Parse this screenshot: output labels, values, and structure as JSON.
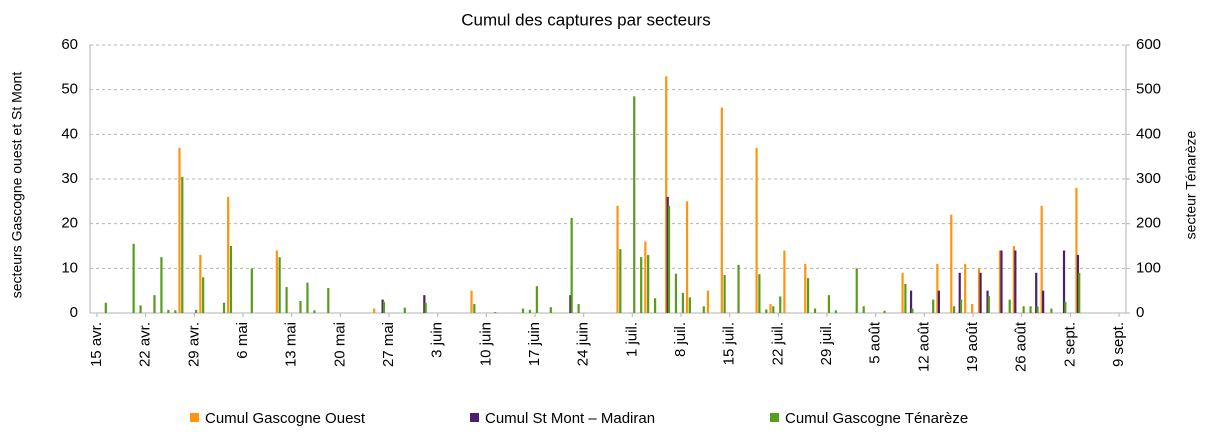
{
  "chart_data": {
    "type": "bar",
    "title": "Cumul des captures par secteurs",
    "y_label": "secteurs Gascogne ouest et St Mont",
    "y2_label": "secteur Ténarèze",
    "x": [
      "04-16",
      "04-20",
      "04-21",
      "04-23",
      "04-24",
      "04-25",
      "04-26",
      "04-27",
      "04-29",
      "04-30",
      "05-03",
      "05-04",
      "05-07",
      "05-11",
      "05-12",
      "05-14",
      "05-15",
      "05-16",
      "05-18",
      "05-25",
      "05-26",
      "05-29",
      "06-01",
      "06-08",
      "06-11",
      "06-15",
      "06-16",
      "06-17",
      "06-19",
      "06-22",
      "06-23",
      "06-29",
      "07-01",
      "07-02",
      "07-03",
      "07-04",
      "07-06",
      "07-07",
      "07-08",
      "07-09",
      "07-11",
      "07-12",
      "07-14",
      "07-16",
      "07-19",
      "07-20",
      "07-21",
      "07-22",
      "07-23",
      "07-26",
      "07-27",
      "07-29",
      "07-30",
      "08-02",
      "08-03",
      "08-06",
      "08-09",
      "08-10",
      "08-13",
      "08-14",
      "08-16",
      "08-17",
      "08-18",
      "08-19",
      "08-20",
      "08-21",
      "08-23",
      "08-24",
      "08-25",
      "08-26",
      "08-27",
      "08-28",
      "08-29",
      "08-30",
      "09-01",
      "09-03"
    ],
    "series": [
      {
        "name": "Cumul Gascogne Ouest",
        "color": "#ff950e",
        "values": [
          null,
          null,
          null,
          null,
          null,
          null,
          null,
          37,
          null,
          13,
          null,
          26,
          null,
          14,
          null,
          null,
          null,
          null,
          null,
          1,
          null,
          null,
          null,
          5,
          null,
          null,
          null,
          null,
          null,
          null,
          null,
          24,
          null,
          null,
          16,
          null,
          53,
          null,
          null,
          25,
          null,
          5,
          46,
          null,
          37,
          null,
          2,
          null,
          14,
          11,
          null,
          null,
          null,
          null,
          null,
          null,
          9,
          null,
          null,
          11,
          22,
          null,
          11,
          2,
          10,
          null,
          14,
          null,
          15,
          null,
          null,
          null,
          24,
          null,
          null,
          28
        ]
      },
      {
        "name": "Cumul St Mont – Madiran",
        "color": "#4b1f6f",
        "values": [
          null,
          null,
          null,
          null,
          null,
          null,
          null,
          null,
          null,
          null,
          null,
          null,
          null,
          null,
          null,
          null,
          null,
          null,
          null,
          null,
          3,
          null,
          4,
          null,
          null,
          null,
          null,
          null,
          null,
          4,
          null,
          null,
          null,
          null,
          null,
          null,
          26,
          null,
          null,
          null,
          null,
          null,
          null,
          null,
          null,
          null,
          null,
          null,
          null,
          null,
          null,
          null,
          null,
          null,
          null,
          null,
          null,
          5,
          null,
          5,
          null,
          9,
          null,
          null,
          9,
          5,
          14,
          null,
          14,
          null,
          null,
          9,
          5,
          null,
          14,
          13
        ]
      },
      {
        "name": "Cumul Gascogne Ténarèze",
        "color": "#579d1c",
        "axis": "y2",
        "values": [
          23,
          155,
          17,
          40,
          125,
          7,
          6,
          305,
          7,
          80,
          23,
          150,
          100,
          125,
          58,
          27,
          68,
          6,
          56,
          null,
          25,
          12,
          23,
          20,
          2,
          10,
          7,
          60,
          13,
          213,
          20,
          143,
          485,
          125,
          130,
          33,
          240,
          88,
          45,
          35,
          15,
          null,
          85,
          108,
          87,
          8,
          15,
          37,
          null,
          78,
          10,
          40,
          6,
          100,
          15,
          5,
          65,
          10,
          30,
          null,
          15,
          30,
          null,
          null,
          null,
          38,
          null,
          30,
          null,
          15,
          15,
          15,
          null,
          10,
          25,
          90
        ]
      }
    ],
    "xlim": [
      "04-14",
      "09-10"
    ],
    "xticks": [
      {
        "value": "04-15",
        "label": "15 avr."
      },
      {
        "value": "04-22",
        "label": "22 avr."
      },
      {
        "value": "04-29",
        "label": "29 avr."
      },
      {
        "value": "05-06",
        "label": "6 mai"
      },
      {
        "value": "05-13",
        "label": "13 mai"
      },
      {
        "value": "05-20",
        "label": "20 mai"
      },
      {
        "value": "05-27",
        "label": "27 mai"
      },
      {
        "value": "06-03",
        "label": "3 juin"
      },
      {
        "value": "06-10",
        "label": "10 juin"
      },
      {
        "value": "06-17",
        "label": "17 juin"
      },
      {
        "value": "06-24",
        "label": "24 juin"
      },
      {
        "value": "07-01",
        "label": "1 juil."
      },
      {
        "value": "07-08",
        "label": "8 juil."
      },
      {
        "value": "07-15",
        "label": "15 juil."
      },
      {
        "value": "07-22",
        "label": "22 juil."
      },
      {
        "value": "07-29",
        "label": "29 juil."
      },
      {
        "value": "08-05",
        "label": "5 août"
      },
      {
        "value": "08-12",
        "label": "12 août"
      },
      {
        "value": "08-19",
        "label": "19 août"
      },
      {
        "value": "08-26",
        "label": "26 août"
      },
      {
        "value": "09-02",
        "label": "2 sept."
      },
      {
        "value": "09-09",
        "label": "9 sept."
      }
    ],
    "ylim": [
      0,
      60
    ],
    "yticks": [
      0,
      10,
      20,
      30,
      40,
      50,
      60
    ],
    "y2lim": [
      0,
      600
    ],
    "y2ticks": [
      0,
      100,
      200,
      300,
      400,
      500,
      600
    ],
    "grid": true,
    "legend": "bottom"
  }
}
